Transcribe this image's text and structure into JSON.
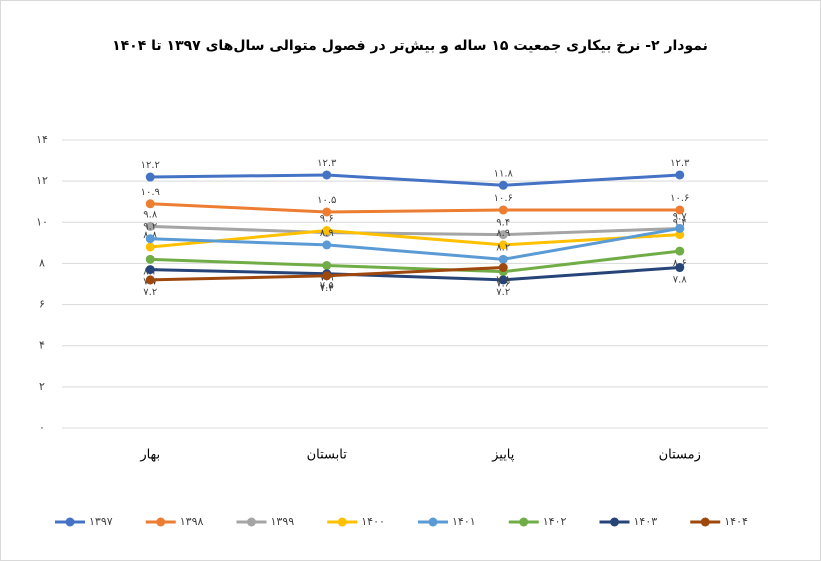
{
  "chart_data": {
    "type": "line",
    "title": "نمودار ۲- نرخ بیکاری جمعیت ۱۵ ساله و بیش‌تر در فصول متوالی سال‌های ۱۳۹۷ تا ۱۴۰۴",
    "categories": [
      "بهار",
      "تابستان",
      "پاییز",
      "زمستان"
    ],
    "ylim": [
      0,
      14
    ],
    "yticks": [
      {
        "value": 0,
        "label": "۰"
      },
      {
        "value": 2,
        "label": "۲"
      },
      {
        "value": 4,
        "label": "۴"
      },
      {
        "value": 6,
        "label": "۶"
      },
      {
        "value": 8,
        "label": "۸"
      },
      {
        "value": 10,
        "label": "۱۰"
      },
      {
        "value": 12,
        "label": "۱۲"
      },
      {
        "value": 14,
        "label": "۱۴"
      }
    ],
    "grid": true,
    "legend": "bottom",
    "series": [
      {
        "name": "۱۳۹۷",
        "color": "#4472c4",
        "values": [
          12.2,
          12.3,
          11.8,
          12.3
        ],
        "value_labels": [
          "۱۲.۲",
          "۱۲.۳",
          "۱۱.۸",
          "۱۲.۳"
        ]
      },
      {
        "name": "۱۳۹۸",
        "color": "#ed7d31",
        "values": [
          10.9,
          10.5,
          10.6,
          10.6
        ],
        "value_labels": [
          "۱۰.۹",
          "۱۰.۵",
          "۱۰.۶",
          "۱۰.۶"
        ]
      },
      {
        "name": "۱۳۹۹",
        "color": "#a5a5a5",
        "values": [
          9.8,
          9.5,
          9.4,
          9.7
        ],
        "value_labels": [
          "۹.۸",
          null,
          "۹.۴",
          "۹.۷"
        ]
      },
      {
        "name": "۱۴۰۰",
        "color": "#ffc000",
        "values": [
          8.8,
          9.6,
          8.9,
          9.4
        ],
        "value_labels": [
          "۸.۸",
          "۹.۶",
          "۸.۹",
          "۹.۴"
        ]
      },
      {
        "name": "۱۴۰۱",
        "color": "#5b9bd5",
        "values": [
          9.2,
          8.9,
          8.2,
          9.7
        ],
        "value_labels": [
          "۹.۲",
          "۸.۹",
          "۸.۲",
          null
        ]
      },
      {
        "name": "۱۴۰۲",
        "color": "#70ad47",
        "values": [
          8.2,
          7.9,
          7.6,
          8.6
        ],
        "value_labels": [
          "۸.۲",
          "۷.۹",
          "۷.۶",
          "۸.۶"
        ]
      },
      {
        "name": "۱۴۰۳",
        "color": "#264478",
        "values": [
          7.7,
          7.5,
          7.2,
          7.8
        ],
        "value_labels": [
          "۷.۷",
          "۷.۵",
          "۷.۲",
          "۷.۸"
        ]
      },
      {
        "name": "۱۴۰۴",
        "color": "#9e480e",
        "values": [
          7.2,
          7.4,
          7.8,
          null
        ],
        "value_labels": [
          "۷.۲",
          "۷.۴",
          "۷.۸",
          null
        ]
      }
    ]
  }
}
